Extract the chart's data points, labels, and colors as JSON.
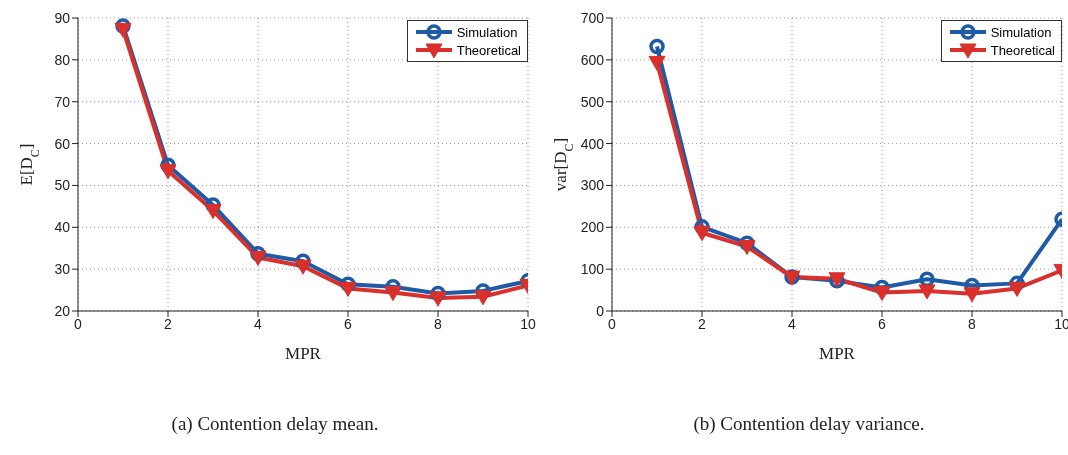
{
  "chart_data": [
    {
      "type": "line",
      "title": "(a) Contention delay mean.",
      "xlabel": "MPR",
      "ylabel": "E[D$_{C}$]",
      "x": [
        1,
        2,
        3,
        4,
        5,
        6,
        7,
        8,
        9,
        10
      ],
      "xlim": [
        0,
        10
      ],
      "xticks": [
        0,
        2,
        4,
        6,
        8,
        10
      ],
      "ylim": [
        20,
        90
      ],
      "yticks": [
        20,
        30,
        40,
        50,
        60,
        70,
        80,
        90
      ],
      "grid": true,
      "legend": "top right",
      "line_style": "solid",
      "series": [
        {
          "name": "Simulation",
          "color": "#1f5aa6",
          "marker": "circle",
          "values": [
            88.1,
            54.8,
            45.3,
            33.7,
            31.9,
            26.4,
            25.8,
            24.2,
            24.8,
            27.2
          ]
        },
        {
          "name": "Theoretical",
          "color": "#d9302b",
          "marker": "triangle",
          "values": [
            87.3,
            53.5,
            44,
            32.8,
            30.7,
            25.4,
            24.4,
            23.1,
            23.4,
            26.1
          ]
        }
      ]
    },
    {
      "type": "line",
      "title": "(b) Contention delay variance.",
      "xlabel": "MPR",
      "ylabel": "var[D$_{C}$]",
      "x": [
        1,
        2,
        3,
        4,
        5,
        6,
        7,
        8,
        9,
        10
      ],
      "xlim": [
        0,
        10
      ],
      "xticks": [
        0,
        2,
        4,
        6,
        8,
        10
      ],
      "ylim": [
        0,
        700
      ],
      "yticks": [
        0,
        100,
        200,
        300,
        400,
        500,
        600,
        700
      ],
      "grid": true,
      "legend": "top right",
      "line_style": "solid",
      "series": [
        {
          "name": "Simulation",
          "color": "#1f5aa6",
          "marker": "circle",
          "values": [
            632,
            201,
            162,
            81,
            72,
            56,
            76,
            61,
            66,
            219
          ]
        },
        {
          "name": "Theoretical",
          "color": "#d9302b",
          "marker": "triangle",
          "values": [
            594,
            187,
            154,
            81,
            77,
            44,
            48,
            41,
            54,
            97
          ]
        }
      ]
    }
  ]
}
